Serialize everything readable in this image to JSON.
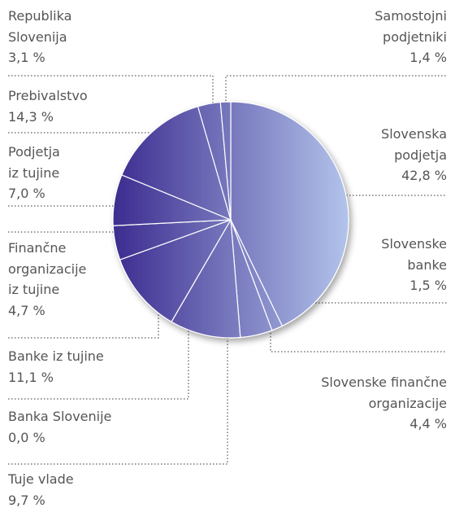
{
  "chart_data": {
    "type": "pie",
    "categories": [
      "Slovenska\npodjetja",
      "Slovenske\nbanke",
      "Slovenske finančne\norganizacije",
      "Tuje vlade",
      "Banka Slovenije",
      "Banke iz tujine",
      "Finančne\norganizacije\niz tujine",
      "Podjetja\niz tujine",
      "Prebivalstvo",
      "Republika\nSlovenija",
      "Samostojni\npodjetniki"
    ],
    "values": [
      42.8,
      1.5,
      4.4,
      9.7,
      0.0,
      11.1,
      4.7,
      7.0,
      14.3,
      3.1,
      1.4
    ],
    "value_labels": [
      "42,8 %",
      "1,5 %",
      "4,4 %",
      "9,7 %",
      "0,0 %",
      "11,1 %",
      "4,7 %",
      "7,0 %",
      "14,3 %",
      "3,1 %",
      "1,4 %"
    ],
    "gradient": [
      "#3b2b8f",
      "#b3c4eb"
    ]
  }
}
